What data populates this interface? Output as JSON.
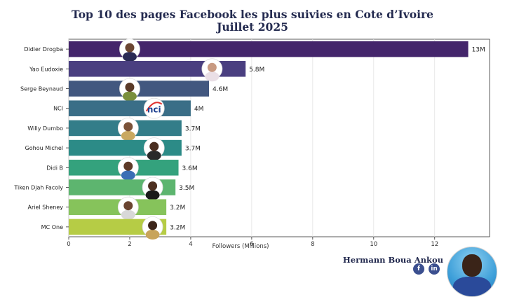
{
  "title_line1": "Top 10 des pages Facebook les plus suivies en Cote d’Ivoire",
  "title_line2": "Juillet 2025",
  "author": "Hermann Boua Ankou",
  "author_icons": [
    "facebook-icon",
    "linkedin-icon",
    "author-photo"
  ],
  "chart_data": {
    "type": "bar",
    "orientation": "horizontal",
    "categories": [
      "Didier Drogba",
      "Yao Eudoxie",
      "Serge Beynaud",
      "NCI",
      "Willy Dumbo",
      "Gohou Michel",
      "Didi B",
      "Tiken Djah Facoly",
      "Ariel Sheney",
      "MC One"
    ],
    "values": [
      13.1,
      5.8,
      4.6,
      4.0,
      3.7,
      3.7,
      3.6,
      3.5,
      3.2,
      3.2
    ],
    "value_labels": [
      "13M",
      "5.8M",
      "4.6M",
      "4M",
      "3.7M",
      "3.7M",
      "3.6M",
      "3.5M",
      "3.2M",
      "3.2M"
    ],
    "colors": [
      "#44256b",
      "#4a3f80",
      "#42577f",
      "#3a6e87",
      "#337d89",
      "#2c8b87",
      "#34a27d",
      "#5db56f",
      "#86c35b",
      "#b6cc45"
    ],
    "xlabel": "Followers (Millions)",
    "xticks": [
      0,
      2,
      4,
      6,
      8,
      10,
      12
    ],
    "xlim": [
      0,
      13.8
    ],
    "grid": "vertical",
    "avatar_icons": [
      "portrait-icon",
      "portrait-icon",
      "portrait-icon",
      "nci-logo",
      "portrait-icon",
      "portrait-icon",
      "portrait-icon",
      "portrait-icon",
      "portrait-icon",
      "portrait-icon"
    ],
    "nci_logo_text": "nci"
  }
}
